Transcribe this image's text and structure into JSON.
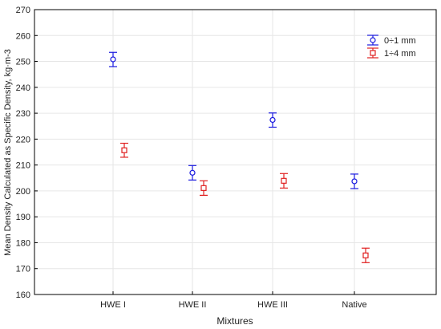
{
  "chart_data": {
    "type": "scatter",
    "title": "",
    "xlabel": "Mixtures",
    "ylabel": "Mean Density Calculated as Specific Density, kg·m-3",
    "categories": [
      "HWE I",
      "HWE II",
      "HWE III",
      "Native"
    ],
    "ylim": [
      160,
      270
    ],
    "yticks": [
      160,
      170,
      180,
      190,
      200,
      210,
      220,
      230,
      240,
      250,
      260,
      270
    ],
    "grid": true,
    "legend_position": "top-right",
    "series": [
      {
        "name": "0÷1 mm",
        "color": "#1a1adf",
        "marker": "circle",
        "values": [
          250.8,
          207.0,
          227.4,
          203.7
        ],
        "err_low": [
          248.0,
          204.2,
          224.6,
          200.9
        ],
        "err_high": [
          253.5,
          209.8,
          230.1,
          206.5
        ]
      },
      {
        "name": "1÷4 mm",
        "color": "#e02020",
        "marker": "square",
        "values": [
          215.7,
          201.1,
          203.9,
          175.1
        ],
        "err_low": [
          213.0,
          198.3,
          201.1,
          172.3
        ],
        "err_high": [
          218.4,
          203.9,
          206.7,
          177.9
        ]
      }
    ]
  }
}
